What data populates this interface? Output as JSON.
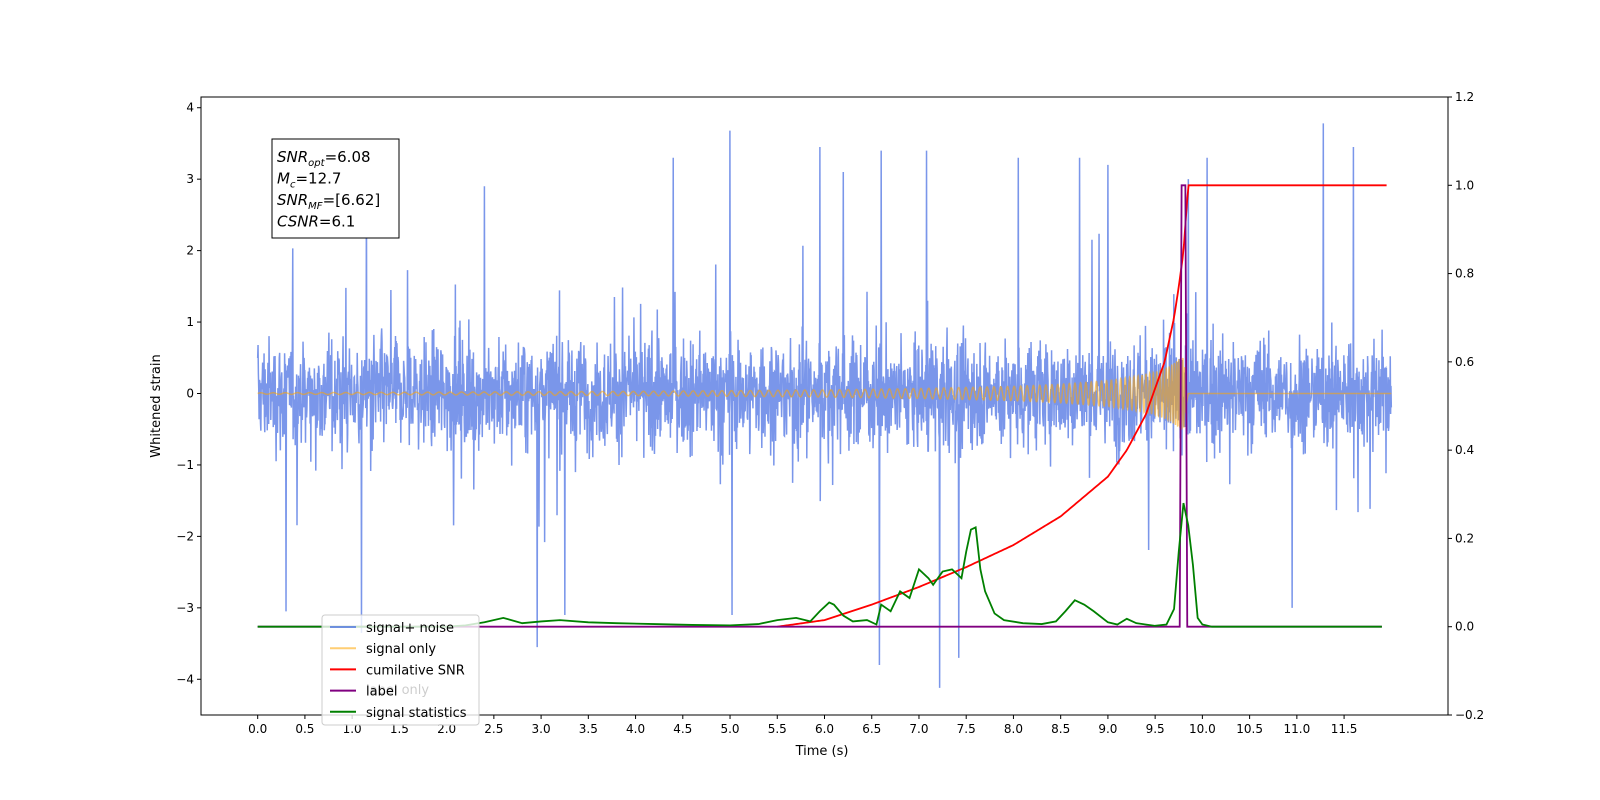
{
  "chart_data": {
    "type": "line",
    "title": "",
    "xlabel": "Time (s)",
    "ylabel": "Whitened strain",
    "xlim": [
      -0.6,
      12.6
    ],
    "ylim": [
      -4.5,
      4.15
    ],
    "y2lim": [
      -0.2,
      1.2
    ],
    "grid": false,
    "x_ticks": [
      0.0,
      0.5,
      1.0,
      1.5,
      2.0,
      2.5,
      3.0,
      3.5,
      4.0,
      4.5,
      5.0,
      5.5,
      6.0,
      6.5,
      7.0,
      7.5,
      8.0,
      8.5,
      9.0,
      9.5,
      10.0,
      10.5,
      11.0,
      11.5
    ],
    "x_tick_labels": [
      "0.0",
      "0.5",
      "1.0",
      "1.5",
      "2.0",
      "2.5",
      "3.0",
      "3.5",
      "4.0",
      "4.5",
      "5.0",
      "5.5",
      "6.0",
      "6.5",
      "7.0",
      "7.5",
      "8.0",
      "8.5",
      "9.0",
      "9.5",
      "10.0",
      "10.5",
      "11.0",
      "11.5"
    ],
    "y_ticks": [
      -4,
      -3,
      -2,
      -1,
      0,
      1,
      2,
      3,
      4
    ],
    "y_tick_labels": [
      "−4",
      "−3",
      "−2",
      "−1",
      "0",
      "1",
      "2",
      "3",
      "4"
    ],
    "y2_ticks": [
      -0.2,
      0.0,
      0.2,
      0.4,
      0.6,
      0.8,
      1.0,
      1.2
    ],
    "y2_tick_labels": [
      "−0.2",
      "0.0",
      "0.2",
      "0.4",
      "0.6",
      "0.8",
      "1.0",
      "1.2"
    ],
    "legend_placement": "lower-left",
    "series": [
      {
        "name": "signal+ noise",
        "axis": "left",
        "color": "#4169e1",
        "description": "noisy strain, roughly uniform over 0–12 s, envelope about ±1.5 with spikes to about ±4",
        "envelope": {
          "x": [
            0.0,
            12.0
          ],
          "low": [
            -1.5,
            -1.5
          ],
          "high": [
            1.5,
            1.5
          ]
        },
        "spikes": [
          {
            "x": 5.0,
            "y": 3.68
          },
          {
            "x": 11.28,
            "y": 3.78
          },
          {
            "x": 7.22,
            "y": -4.12
          },
          {
            "x": 6.58,
            "y": -3.8
          },
          {
            "x": 7.42,
            "y": -3.7
          },
          {
            "x": 2.96,
            "y": -3.55
          },
          {
            "x": 4.4,
            "y": 3.3
          },
          {
            "x": 5.95,
            "y": 3.45
          },
          {
            "x": 6.6,
            "y": 3.4
          },
          {
            "x": 7.08,
            "y": 3.4
          },
          {
            "x": 8.05,
            "y": 3.3
          },
          {
            "x": 10.05,
            "y": 3.3
          },
          {
            "x": 11.6,
            "y": 3.45
          },
          {
            "x": 1.1,
            "y": -3.35
          },
          {
            "x": 1.15,
            "y": 3.05
          },
          {
            "x": 5.02,
            "y": -3.1
          },
          {
            "x": 0.3,
            "y": -3.05
          },
          {
            "x": 9.0,
            "y": 3.2
          },
          {
            "x": 3.25,
            "y": -3.1
          },
          {
            "x": 10.95,
            "y": -3.0
          },
          {
            "x": 8.7,
            "y": 3.3
          },
          {
            "x": 6.2,
            "y": 3.1
          },
          {
            "x": 2.4,
            "y": 2.9
          },
          {
            "x": 9.85,
            "y": 3.0
          }
        ]
      },
      {
        "name": "signal only",
        "axis": "left",
        "color": "#ffa500",
        "description": "chirp waveform growing in amplitude and frequency, merging at about 9.8 s",
        "x": [
          0.0,
          2.0,
          4.0,
          6.0,
          7.0,
          8.0,
          8.5,
          9.0,
          9.3,
          9.5,
          9.65,
          9.75,
          9.8,
          9.85,
          12.0
        ],
        "amplitude": [
          0.01,
          0.02,
          0.03,
          0.05,
          0.07,
          0.1,
          0.13,
          0.18,
          0.24,
          0.3,
          0.38,
          0.48,
          0.52,
          0.0,
          0.0
        ]
      },
      {
        "name": "cumilative SNR",
        "axis": "right",
        "color": "#ff0000",
        "x": [
          5.5,
          6.0,
          6.5,
          7.0,
          7.5,
          8.0,
          8.5,
          9.0,
          9.2,
          9.4,
          9.6,
          9.7,
          9.75,
          9.8,
          9.85,
          9.9,
          11.95
        ],
        "values": [
          0.0,
          0.015,
          0.05,
          0.09,
          0.135,
          0.185,
          0.25,
          0.34,
          0.4,
          0.48,
          0.6,
          0.7,
          0.77,
          0.85,
          1.0,
          1.0,
          1.0
        ]
      },
      {
        "name": "label",
        "axis": "right",
        "color": "#800080",
        "x": [
          0.0,
          9.76,
          9.78,
          9.82,
          9.84,
          11.9
        ],
        "values": [
          0.0,
          0.0,
          1.0,
          1.0,
          0.0,
          0.0
        ]
      },
      {
        "name": "signal statistics",
        "axis": "right",
        "color": "#008000",
        "x": [
          0.0,
          2.0,
          2.2,
          2.4,
          2.6,
          2.8,
          3.0,
          3.2,
          3.5,
          3.8,
          4.2,
          4.6,
          5.0,
          5.3,
          5.5,
          5.7,
          5.85,
          5.95,
          6.05,
          6.1,
          6.2,
          6.3,
          6.45,
          6.55,
          6.6,
          6.7,
          6.8,
          6.9,
          7.0,
          7.1,
          7.15,
          7.25,
          7.35,
          7.45,
          7.5,
          7.55,
          7.6,
          7.65,
          7.7,
          7.8,
          7.9,
          8.1,
          8.3,
          8.45,
          8.55,
          8.65,
          8.75,
          8.85,
          9.0,
          9.1,
          9.2,
          9.3,
          9.5,
          9.62,
          9.7,
          9.75,
          9.8,
          9.85,
          9.9,
          9.95,
          10.0,
          10.1,
          10.5,
          11.0,
          11.9
        ],
        "values": [
          0.0,
          0.0,
          0.003,
          0.01,
          0.02,
          0.008,
          0.012,
          0.015,
          0.01,
          0.008,
          0.006,
          0.004,
          0.003,
          0.006,
          0.015,
          0.02,
          0.012,
          0.035,
          0.055,
          0.05,
          0.025,
          0.012,
          0.015,
          0.005,
          0.05,
          0.035,
          0.08,
          0.065,
          0.13,
          0.11,
          0.095,
          0.125,
          0.13,
          0.11,
          0.17,
          0.22,
          0.225,
          0.13,
          0.08,
          0.03,
          0.015,
          0.008,
          0.006,
          0.012,
          0.035,
          0.06,
          0.05,
          0.035,
          0.01,
          0.005,
          0.018,
          0.008,
          0.002,
          0.005,
          0.04,
          0.17,
          0.28,
          0.23,
          0.14,
          0.02,
          0.005,
          0.0,
          0.0,
          0.0,
          0.0
        ]
      }
    ],
    "legend_entries": [
      {
        "name": "signal+ noise",
        "color": "#4169e1"
      },
      {
        "name": "signal only",
        "color": "#ffa500"
      },
      {
        "name": "cumilative SNR",
        "color": "#ff0000"
      },
      {
        "name": "label",
        "color": "#800080"
      },
      {
        "name": "signal statistics",
        "color": "#008000"
      }
    ],
    "obscured_legend_text": "label only",
    "annotation": {
      "lines": [
        {
          "main": "SNR",
          "sub": "opt",
          "rest": "=6.08"
        },
        {
          "main": "M",
          "sub": "c",
          "rest": "=12.7"
        },
        {
          "main": "SNR",
          "sub": "MF",
          "rest": "=[6.62]"
        },
        {
          "main": "CSNR",
          "sub": "",
          "rest": "=6.1"
        }
      ]
    }
  }
}
